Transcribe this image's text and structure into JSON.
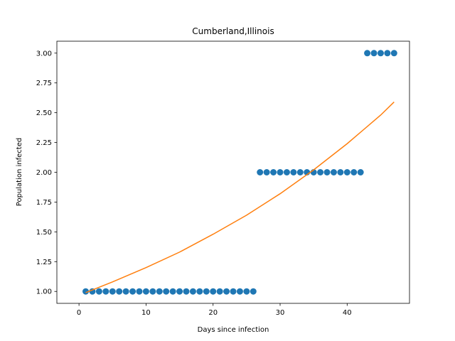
{
  "chart_data": {
    "type": "scatter",
    "title": "Cumberland,Illinois",
    "xlabel": "Days since infection",
    "ylabel": "Population infected",
    "xlim": [
      -3.3,
      49.3
    ],
    "ylim": [
      0.9,
      3.1
    ],
    "xticks": [
      0,
      10,
      20,
      30,
      40
    ],
    "yticks": [
      1.0,
      1.25,
      1.5,
      1.75,
      2.0,
      2.25,
      2.5,
      2.75,
      3.0
    ],
    "ytick_labels": [
      "1.00",
      "1.25",
      "1.50",
      "1.75",
      "2.00",
      "2.25",
      "2.50",
      "2.75",
      "3.00"
    ],
    "grid": false,
    "series": [
      {
        "kind": "scatter",
        "color": "#1f77b4",
        "x": [
          1,
          2,
          3,
          4,
          5,
          6,
          7,
          8,
          9,
          10,
          11,
          12,
          13,
          14,
          15,
          16,
          17,
          18,
          19,
          20,
          21,
          22,
          23,
          24,
          25,
          26,
          27,
          28,
          29,
          30,
          31,
          32,
          33,
          34,
          35,
          36,
          37,
          38,
          39,
          40,
          41,
          42,
          43,
          44,
          45,
          46,
          47
        ],
        "y": [
          1,
          1,
          1,
          1,
          1,
          1,
          1,
          1,
          1,
          1,
          1,
          1,
          1,
          1,
          1,
          1,
          1,
          1,
          1,
          1,
          1,
          1,
          1,
          1,
          1,
          1,
          2,
          2,
          2,
          2,
          2,
          2,
          2,
          2,
          2,
          2,
          2,
          2,
          2,
          2,
          2,
          2,
          3,
          3,
          3,
          3,
          3
        ]
      },
      {
        "kind": "line",
        "color": "#ff7f0e",
        "x": [
          1,
          5,
          10,
          15,
          20,
          25,
          30,
          35,
          40,
          45,
          47
        ],
        "y": [
          0.99,
          1.08,
          1.2,
          1.33,
          1.48,
          1.64,
          1.82,
          2.02,
          2.24,
          2.48,
          2.59
        ]
      }
    ]
  }
}
